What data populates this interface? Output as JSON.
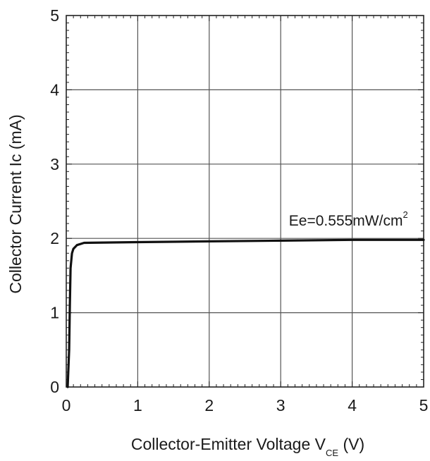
{
  "chart_data": {
    "type": "line",
    "title": "",
    "xlabel": "Collector-Emitter Voltage V",
    "xlabel_subscript": "CE",
    "xlabel_suffix": " (V)",
    "ylabel": "Collector Current Ic (mA)",
    "xlim": [
      0,
      5
    ],
    "ylim": [
      0,
      5
    ],
    "x_ticks": [
      0,
      1,
      2,
      3,
      4,
      5
    ],
    "y_ticks": [
      0,
      1,
      2,
      3,
      4,
      5
    ],
    "grid": true,
    "series": [
      {
        "name": "",
        "x": [
          0.02,
          0.04,
          0.05,
          0.06,
          0.08,
          0.1,
          0.15,
          0.25,
          1.0,
          2.0,
          3.0,
          4.0,
          5.0
        ],
        "y": [
          0.0,
          0.5,
          1.1,
          1.6,
          1.8,
          1.86,
          1.91,
          1.94,
          1.95,
          1.96,
          1.97,
          1.98,
          1.98
        ],
        "color": "#111111"
      }
    ],
    "annotations": [
      {
        "text": "Ee=0.555mW/cm",
        "superscript": "2",
        "x": 4.78,
        "y": 2.25
      }
    ]
  }
}
